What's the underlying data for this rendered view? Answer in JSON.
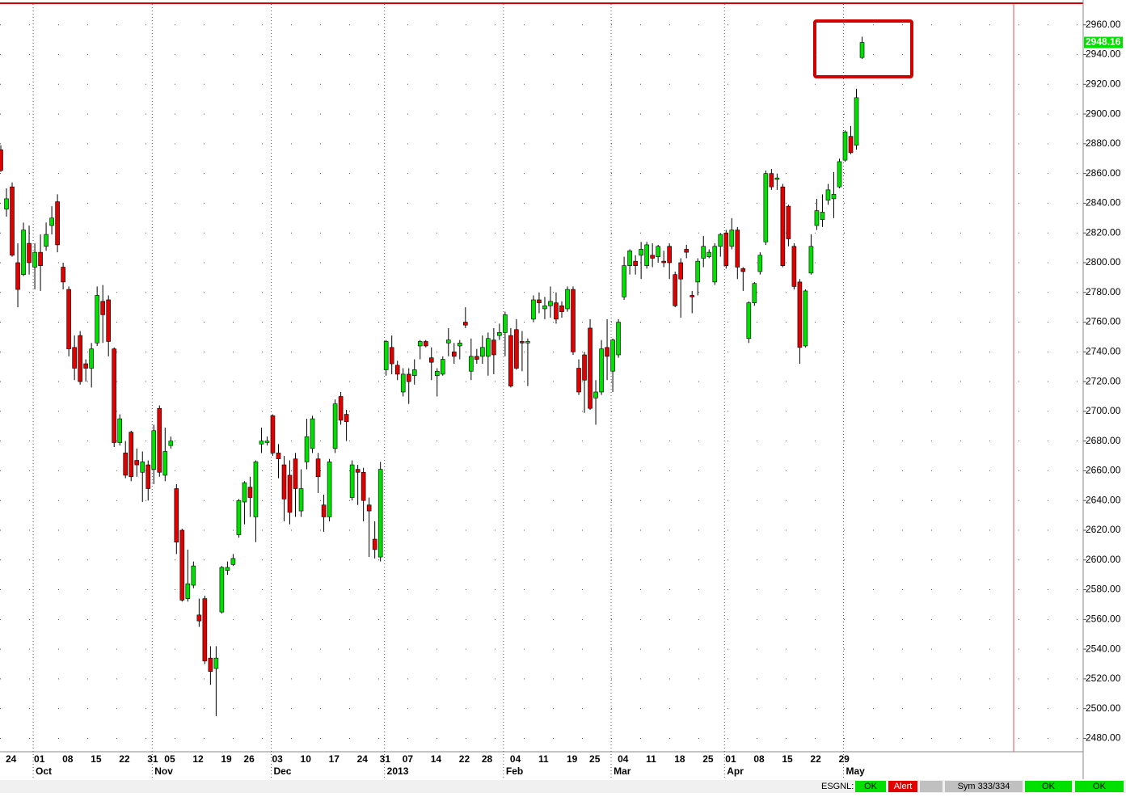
{
  "chart_data": {
    "type": "candlestick",
    "categories": [
      null,
      "24",
      null,
      null,
      null,
      null,
      "01",
      null,
      null,
      null,
      null,
      "08",
      null,
      null,
      null,
      null,
      "15",
      null,
      null,
      null,
      null,
      "22",
      null,
      null,
      null,
      null,
      "31",
      null,
      null,
      "05",
      null,
      null,
      null,
      null,
      "12",
      null,
      null,
      null,
      null,
      "19",
      null,
      null,
      null,
      "26",
      null,
      null,
      null,
      null,
      "03",
      null,
      null,
      null,
      null,
      "10",
      null,
      null,
      null,
      null,
      "17",
      null,
      null,
      null,
      null,
      "24",
      null,
      null,
      null,
      "31",
      null,
      null,
      null,
      "07",
      null,
      null,
      null,
      null,
      "14",
      null,
      null,
      null,
      null,
      "22",
      null,
      null,
      null,
      "28",
      null,
      null,
      null,
      null,
      "04",
      null,
      null,
      null,
      null,
      "11",
      null,
      null,
      null,
      null,
      "19",
      null,
      null,
      null,
      "25",
      null,
      null,
      null,
      null,
      "04",
      null,
      null,
      null,
      null,
      "11",
      null,
      null,
      null,
      null,
      "18",
      null,
      null,
      null,
      null,
      "25",
      null,
      null,
      null,
      "01",
      null,
      null,
      null,
      null,
      "08",
      null,
      null,
      null,
      null,
      "15",
      null,
      null,
      null,
      null,
      "22",
      null,
      null,
      null,
      null,
      "29",
      null,
      null,
      null,
      null
    ],
    "month_labels": [
      null,
      null,
      null,
      null,
      null,
      null,
      "Oct",
      null,
      null,
      null,
      null,
      null,
      null,
      null,
      null,
      null,
      null,
      null,
      null,
      null,
      null,
      null,
      null,
      null,
      null,
      null,
      null,
      "Nov",
      null,
      null,
      null,
      null,
      null,
      null,
      null,
      null,
      null,
      null,
      null,
      null,
      null,
      null,
      null,
      null,
      null,
      null,
      null,
      null,
      "Dec",
      null,
      null,
      null,
      null,
      null,
      null,
      null,
      null,
      null,
      null,
      null,
      null,
      null,
      null,
      null,
      null,
      null,
      null,
      null,
      "2013",
      null,
      null,
      null,
      null,
      null,
      null,
      null,
      null,
      null,
      null,
      null,
      null,
      null,
      null,
      null,
      null,
      null,
      null,
      null,
      null,
      "Feb",
      null,
      null,
      null,
      null,
      null,
      null,
      null,
      null,
      null,
      null,
      null,
      null,
      null,
      null,
      null,
      null,
      null,
      null,
      "Mar",
      null,
      null,
      null,
      null,
      null,
      null,
      null,
      null,
      null,
      null,
      null,
      null,
      null,
      null,
      null,
      null,
      null,
      null,
      null,
      "Apr",
      null,
      null,
      null,
      null,
      null,
      null,
      null,
      null,
      null,
      null,
      null,
      null,
      null,
      null,
      null,
      null,
      null,
      null,
      null,
      null,
      "May",
      null,
      null,
      null
    ],
    "open": [
      2876,
      2836,
      2851,
      2800,
      2792,
      2813,
      2797,
      2807,
      2811,
      2825,
      2841,
      2797,
      2782,
      2743,
      2751,
      2732,
      2729,
      2746,
      2774,
      2775,
      2742,
      2679,
      2672,
      2686,
      2667,
      2659,
      2664,
      2661,
      2702,
      2657,
      2677,
      2648,
      2620,
      2574,
      2583,
      2563,
      2574,
      2534,
      2527,
      2565,
      2593,
      2597,
      2617,
      2639,
      2649,
      2629,
      2678,
      2679,
      2697,
      2672,
      2664,
      2657,
      2668,
      2633,
      2666,
      2675,
      2668,
      2637,
      2629,
      2675,
      2710,
      2698,
      2642,
      2661,
      2659,
      2637,
      2614,
      2602,
      2728,
      2743,
      2731,
      2713,
      2725,
      2724,
      2744,
      2747,
      2736,
      2724,
      2725,
      2746,
      2740,
      2744,
      2760,
      2727,
      2737,
      2737,
      2737,
      2748,
      2751,
      2753,
      2751,
      2755,
      2747,
      2746,
      2762,
      2775,
      2769,
      2771,
      2773,
      2771,
      2769,
      2782,
      2729,
      2738,
      2756,
      2709,
      2713,
      2743,
      2727,
      2738,
      2777,
      2798,
      2801,
      2805,
      2798,
      2805,
      2804,
      2801,
      2811,
      2792,
      2800,
      2809,
      2778,
      2787,
      2803,
      2804,
      2787,
      2811,
      2820,
      2811,
      2822,
      2796,
      2749,
      2773,
      2794,
      2814,
      2860,
      2856,
      2851,
      2838,
      2811,
      2787,
      2744,
      2793,
      2825,
      2829,
      2842,
      2843,
      2851,
      2869,
      2885,
      2879,
      2938
    ],
    "high": [
      2879,
      2850,
      2854,
      2813,
      2827,
      2825,
      2813,
      2819,
      2827,
      2838,
      2846,
      2800,
      2784,
      2751,
      2754,
      2735,
      2746,
      2784,
      2785,
      2778,
      2743,
      2698,
      2680,
      2687,
      2675,
      2673,
      2667,
      2691,
      2704,
      2689,
      2683,
      2651,
      2621,
      2607,
      2599,
      2574,
      2576,
      2542,
      2542,
      2596,
      2599,
      2604,
      2641,
      2653,
      2656,
      2667,
      2689,
      2683,
      2698,
      2678,
      2670,
      2667,
      2672,
      2661,
      2695,
      2697,
      2672,
      2644,
      2668,
      2708,
      2713,
      2701,
      2667,
      2664,
      2662,
      2642,
      2626,
      2666,
      2748,
      2751,
      2734,
      2729,
      2729,
      2735,
      2748,
      2748,
      2743,
      2729,
      2737,
      2756,
      2746,
      2748,
      2770,
      2749,
      2742,
      2751,
      2753,
      2756,
      2759,
      2767,
      2756,
      2762,
      2754,
      2749,
      2778,
      2780,
      2777,
      2784,
      2780,
      2774,
      2784,
      2784,
      2735,
      2740,
      2762,
      2721,
      2748,
      2762,
      2749,
      2762,
      2804,
      2809,
      2805,
      2814,
      2814,
      2813,
      2812,
      2808,
      2813,
      2794,
      2803,
      2812,
      2781,
      2803,
      2818,
      2809,
      2813,
      2820,
      2822,
      2830,
      2824,
      2797,
      2774,
      2787,
      2807,
      2862,
      2863,
      2860,
      2853,
      2839,
      2813,
      2789,
      2782,
      2819,
      2843,
      2846,
      2853,
      2861,
      2870,
      2889,
      2892,
      2917,
      2952
    ],
    "low": [
      2861,
      2831,
      2804,
      2770,
      2791,
      2792,
      2782,
      2781,
      2808,
      2819,
      2807,
      2782,
      2737,
      2721,
      2718,
      2720,
      2716,
      2744,
      2746,
      2737,
      2676,
      2677,
      2655,
      2653,
      2656,
      2639,
      2640,
      2651,
      2656,
      2653,
      2675,
      2604,
      2572,
      2572,
      2581,
      2555,
      2530,
      2516,
      2495,
      2564,
      2590,
      2596,
      2615,
      2624,
      2629,
      2612,
      2672,
      2677,
      2670,
      2655,
      2626,
      2624,
      2629,
      2629,
      2661,
      2672,
      2645,
      2619,
      2626,
      2672,
      2691,
      2680,
      2640,
      2637,
      2626,
      2602,
      2601,
      2599,
      2724,
      2725,
      2721,
      2710,
      2705,
      2718,
      2735,
      2743,
      2721,
      2710,
      2724,
      2737,
      2732,
      2735,
      2756,
      2721,
      2732,
      2732,
      2724,
      2725,
      2748,
      2737,
      2716,
      2728,
      2727,
      2717,
      2760,
      2766,
      2762,
      2763,
      2759,
      2763,
      2767,
      2738,
      2711,
      2699,
      2701,
      2691,
      2711,
      2721,
      2713,
      2736,
      2775,
      2792,
      2792,
      2789,
      2796,
      2797,
      2800,
      2797,
      2789,
      2770,
      2763,
      2803,
      2766,
      2778,
      2797,
      2803,
      2785,
      2804,
      2796,
      2809,
      2789,
      2781,
      2746,
      2771,
      2792,
      2812,
      2849,
      2849,
      2797,
      2811,
      2782,
      2732,
      2743,
      2792,
      2822,
      2824,
      2839,
      2830,
      2850,
      2868,
      2873,
      2876,
      2937
    ],
    "close": [
      2862,
      2843,
      2805,
      2782,
      2822,
      2800,
      2807,
      2798,
      2819,
      2830,
      2812,
      2787,
      2742,
      2729,
      2720,
      2729,
      2742,
      2778,
      2765,
      2747,
      2679,
      2695,
      2657,
      2656,
      2664,
      2666,
      2648,
      2687,
      2659,
      2673,
      2680,
      2612,
      2573,
      2584,
      2596,
      2559,
      2532,
      2525,
      2534,
      2595,
      2595,
      2601,
      2640,
      2652,
      2642,
      2666,
      2680,
      2680,
      2672,
      2668,
      2641,
      2632,
      2648,
      2648,
      2683,
      2695,
      2656,
      2629,
      2666,
      2705,
      2694,
      2693,
      2664,
      2659,
      2640,
      2633,
      2607,
      2661,
      2747,
      2732,
      2725,
      2725,
      2720,
      2728,
      2747,
      2744,
      2733,
      2727,
      2735,
      2748,
      2737,
      2746,
      2758,
      2737,
      2735,
      2743,
      2749,
      2738,
      2753,
      2765,
      2717,
      2729,
      2746,
      2747,
      2775,
      2773,
      2771,
      2774,
      2762,
      2767,
      2782,
      2740,
      2713,
      2721,
      2702,
      2713,
      2742,
      2737,
      2748,
      2760,
      2798,
      2808,
      2798,
      2809,
      2812,
      2803,
      2811,
      2800,
      2800,
      2771,
      2789,
      2807,
      2777,
      2801,
      2811,
      2807,
      2811,
      2819,
      2798,
      2822,
      2797,
      2794,
      2773,
      2786,
      2805,
      2860,
      2851,
      2857,
      2798,
      2816,
      2784,
      2743,
      2781,
      2811,
      2835,
      2834,
      2849,
      2846,
      2868,
      2888,
      2874,
      2911,
      2948.16
    ],
    "up_color": "#00e000",
    "down_color": "#e00000",
    "ylim": [
      2471,
      2974
    ],
    "yticks": [
      {
        "value": 2480,
        "label": "2480.00"
      },
      {
        "value": 2500,
        "label": "2500.00"
      },
      {
        "value": 2520,
        "label": "2520.00"
      },
      {
        "value": 2540,
        "label": "2540.00"
      },
      {
        "value": 2560,
        "label": "2560.00"
      },
      {
        "value": 2580,
        "label": "2580.00"
      },
      {
        "value": 2600,
        "label": "2600.00"
      },
      {
        "value": 2620,
        "label": "2620.00"
      },
      {
        "value": 2640,
        "label": "2640.00"
      },
      {
        "value": 2660,
        "label": "2660.00"
      },
      {
        "value": 2680,
        "label": "2680.00"
      },
      {
        "value": 2700,
        "label": "2700.00"
      },
      {
        "value": 2720,
        "label": "2720.00"
      },
      {
        "value": 2740,
        "label": "2740.00"
      },
      {
        "value": 2760,
        "label": "2760.00"
      },
      {
        "value": 2780,
        "label": "2780.00"
      },
      {
        "value": 2800,
        "label": "2800.00"
      },
      {
        "value": 2820,
        "label": "2820.00"
      },
      {
        "value": 2840,
        "label": "2840.00"
      },
      {
        "value": 2860,
        "label": "2860.00"
      },
      {
        "value": 2880,
        "label": "2880.00"
      },
      {
        "value": 2900,
        "label": "2900.00"
      },
      {
        "value": 2920,
        "label": "2920.00"
      },
      {
        "value": 2940,
        "label": "2940.00"
      },
      {
        "value": 2960,
        "label": "2960.00"
      }
    ],
    "grid": true,
    "y_axis_side": "right"
  },
  "status_bar": {
    "feed": "ESGNL:",
    "feed_status": "OK",
    "alert": "Alert",
    "symbols": "Sym 333/334",
    "status_2": "OK",
    "status_3": "OK"
  }
}
